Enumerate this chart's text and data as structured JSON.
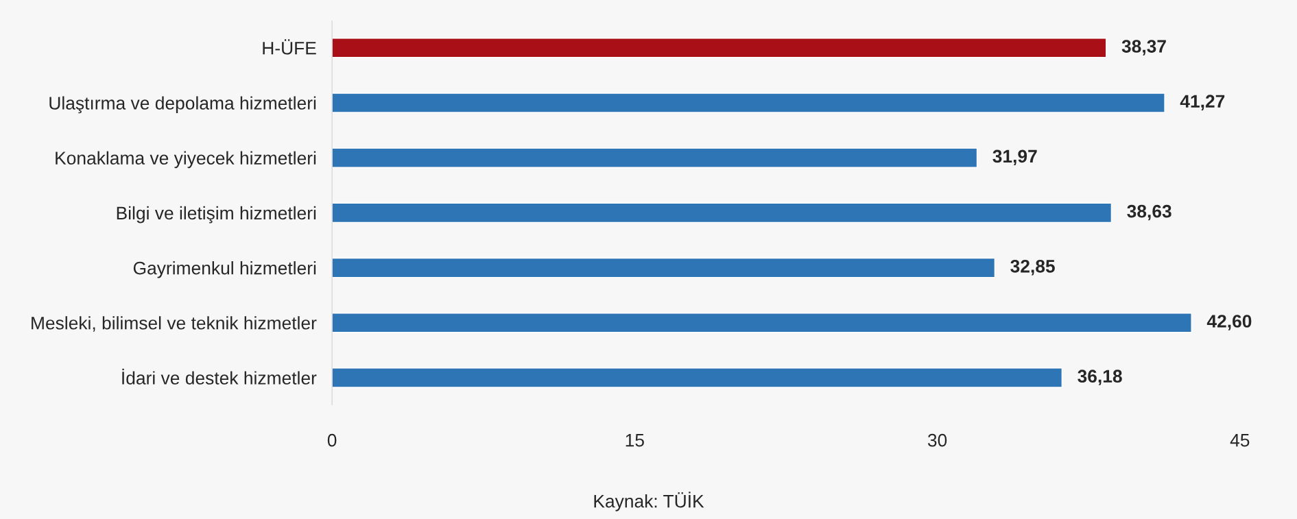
{
  "chart_data": {
    "type": "bar",
    "orientation": "horizontal",
    "categories": [
      "H-ÜFE",
      "Ulaştırma ve depolama hizmetleri",
      "Konaklama ve yiyecek hizmetleri",
      "Bilgi ve iletişim hizmetleri",
      "Gayrimenkul hizmetleri",
      "Mesleki, bilimsel ve teknik hizmetler",
      "İdari ve destek hizmetler"
    ],
    "values": [
      38.37,
      41.27,
      31.97,
      38.63,
      32.85,
      42.6,
      36.18
    ],
    "value_labels": [
      "38,37",
      "41,27",
      "31,97",
      "38,63",
      "32,85",
      "42,60",
      "36,18"
    ],
    "colors": [
      "#a80f16",
      "#2e75b6",
      "#2e75b6",
      "#2e75b6",
      "#2e75b6",
      "#2e75b6",
      "#2e75b6"
    ],
    "xlim": [
      0,
      45
    ],
    "xticks": [
      0,
      15,
      30,
      45
    ],
    "grid": false,
    "legend": false,
    "annotations": [
      "Kaynak: TÜİK"
    ]
  }
}
